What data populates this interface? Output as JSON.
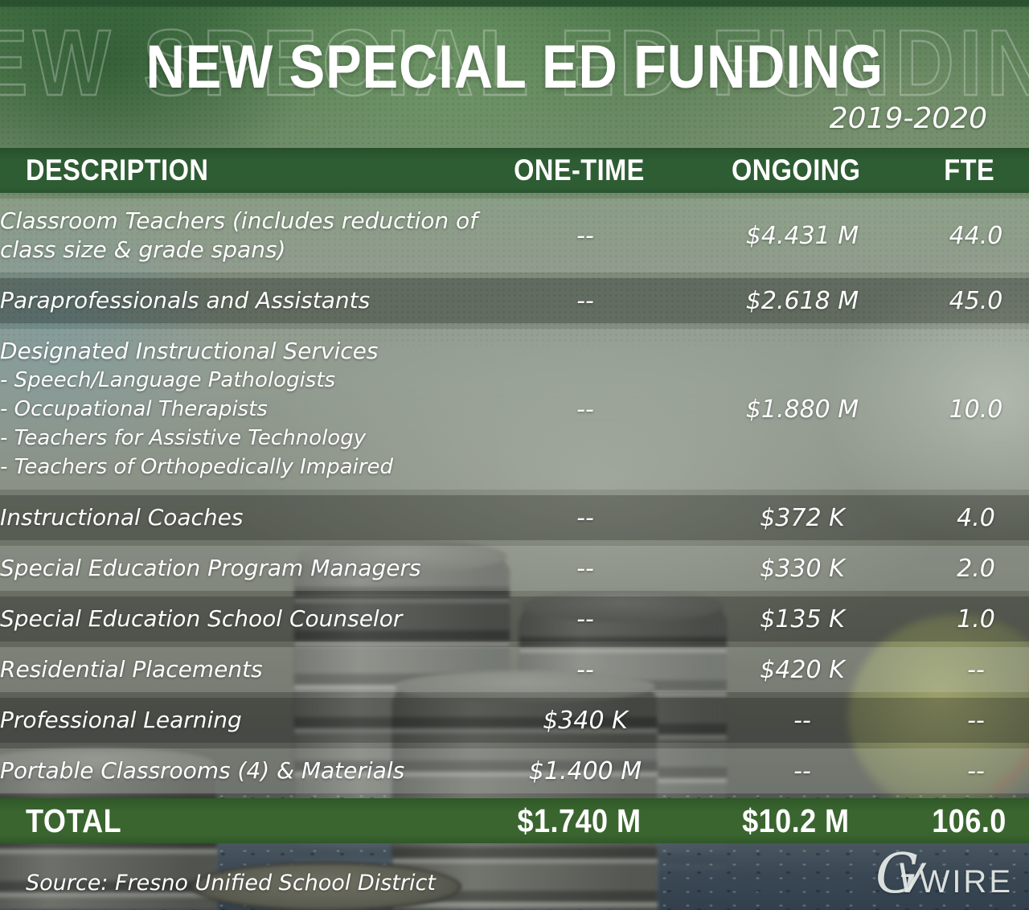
{
  "header": {
    "title": "NEW SPECIAL ED FUNDING",
    "school_year": "2019-2020"
  },
  "chart_data": {
    "type": "table",
    "title": "NEW SPECIAL ED FUNDING",
    "subtitle": "2019-2020",
    "columns": [
      "DESCRIPTION",
      "ONE-TIME",
      "ONGOING",
      "FTE"
    ],
    "rows": [
      {
        "description": "Classroom Teachers (includes reduction of class size & grade spans)",
        "one_time": "--",
        "ongoing": "$4.431 M",
        "fte": "44.0"
      },
      {
        "description": "Paraprofessionals and Assistants",
        "one_time": "--",
        "ongoing": "$2.618 M",
        "fte": "45.0"
      },
      {
        "description": "Designated Instructional Services",
        "details": [
          "- Speech/Language Pathologists",
          "- Occupational Therapists",
          "- Teachers for Assistive Technology",
          "- Teachers of Orthopedically Impaired"
        ],
        "one_time": "--",
        "ongoing": "$1.880 M",
        "fte": "10.0"
      },
      {
        "description": "Instructional Coaches",
        "one_time": "--",
        "ongoing": "$372 K",
        "fte": "4.0"
      },
      {
        "description": "Special Education Program Managers",
        "one_time": "--",
        "ongoing": "$330 K",
        "fte": "2.0"
      },
      {
        "description": "Special Education School Counselor",
        "one_time": "--",
        "ongoing": "$135 K",
        "fte": "1.0"
      },
      {
        "description": "Residential Placements",
        "one_time": "--",
        "ongoing": "$420 K",
        "fte": "--"
      },
      {
        "description": "Professional Learning",
        "one_time": "$340 K",
        "ongoing": "--",
        "fte": "--"
      },
      {
        "description": "Portable Classrooms (4) & Materials",
        "one_time": "$1.400 M",
        "ongoing": "--",
        "fte": "--"
      }
    ],
    "total": {
      "label": "TOTAL",
      "one_time": "$1.740 M",
      "ongoing": "$10.2 M",
      "fte": "106.0"
    },
    "source": "Source: Fresno Unified School District"
  },
  "footer": {
    "logo": {
      "g": "G",
      "v": "V",
      "wire": "WIRE"
    }
  },
  "colors": {
    "header_band": "#2e5c33",
    "total_band": "#3a652f",
    "text": "#ffffff"
  }
}
